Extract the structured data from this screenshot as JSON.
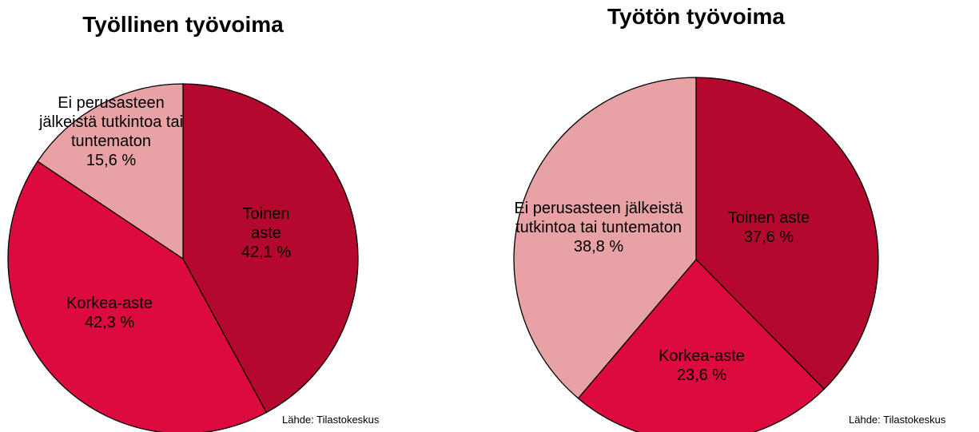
{
  "chart_data": [
    {
      "type": "pie",
      "title": "Työllinen työvoima",
      "categories": [
        "Toinen aste",
        "Korkea-aste",
        "Ei perusasteen jälkeistä tutkintoa tai tuntematon"
      ],
      "values": [
        42.1,
        42.3,
        15.6
      ],
      "value_labels": [
        "42,1 %",
        "42,3 %",
        "15,6 %"
      ],
      "colors": [
        "#b5082f",
        "#dc0a3e",
        "#e8a2a6"
      ],
      "source": "Lähde: Tilastokeskus"
    },
    {
      "type": "pie",
      "title": "Työtön työvoima",
      "categories": [
        "Toinen aste",
        "Korkea-aste",
        "Ei perusasteen jälkeistä tutkintoa tai tuntematon"
      ],
      "values": [
        37.6,
        23.6,
        38.8
      ],
      "value_labels": [
        "37,6 %",
        "23,6 %",
        "38,8 %"
      ],
      "colors": [
        "#b5082f",
        "#dc0a3e",
        "#e8a2a6"
      ],
      "source": "Lähde: Tilastokeskus"
    }
  ]
}
